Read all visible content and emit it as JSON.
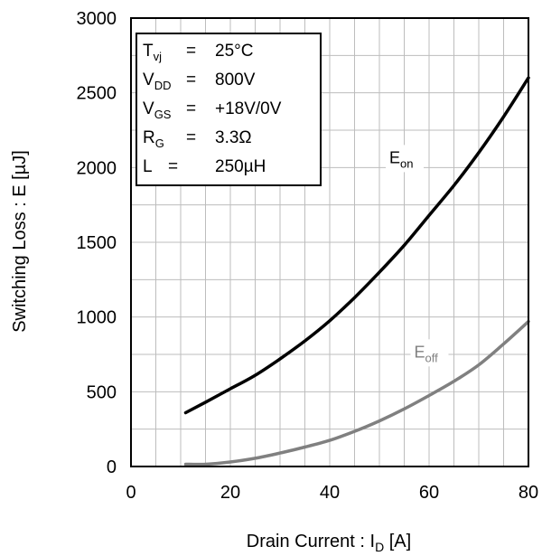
{
  "chart_data": {
    "type": "line",
    "xlabel": {
      "main": "Drain Current : I",
      "sub": "D",
      "unit": " [A]"
    },
    "ylabel": "Switching Loss : E [µJ]",
    "xlim": [
      0,
      80
    ],
    "ylim": [
      0,
      3000
    ],
    "x_ticks": [
      0,
      20,
      40,
      60,
      80
    ],
    "x_tick_labels": [
      "0",
      "20",
      "40",
      "60",
      "80"
    ],
    "y_ticks": [
      0,
      500,
      1000,
      1500,
      2000,
      2500,
      3000
    ],
    "y_tick_labels": [
      "0",
      "500",
      "1000",
      "1500",
      "2000",
      "2500",
      "3000"
    ],
    "grid": true,
    "conditions": [
      {
        "param": "T",
        "sub": "vj",
        "eq": "=",
        "value": "25°C"
      },
      {
        "param": "V",
        "sub": "DD",
        "eq": "=",
        "value": "800V"
      },
      {
        "param": "V",
        "sub": "GS",
        "eq": "=",
        "value": "+18V/0V"
      },
      {
        "param": "R",
        "sub": "G",
        "eq": "=",
        "value": "3.3Ω"
      },
      {
        "param": "L",
        "sub": "",
        "eq": "=",
        "value": "250µH"
      }
    ],
    "series": [
      {
        "name": "E",
        "name_sub": "on",
        "color": "#000000",
        "label_at": [
          52,
          2030
        ],
        "points": [
          [
            11,
            360
          ],
          [
            15,
            430
          ],
          [
            20,
            520
          ],
          [
            25,
            610
          ],
          [
            30,
            720
          ],
          [
            35,
            840
          ],
          [
            40,
            975
          ],
          [
            45,
            1130
          ],
          [
            50,
            1300
          ],
          [
            55,
            1480
          ],
          [
            60,
            1680
          ],
          [
            65,
            1880
          ],
          [
            70,
            2100
          ],
          [
            75,
            2340
          ],
          [
            80,
            2600
          ]
        ]
      },
      {
        "name": "E",
        "name_sub": "off",
        "color": "#808080",
        "label_at": [
          57,
          730
        ],
        "points": [
          [
            11,
            15
          ],
          [
            15,
            15
          ],
          [
            20,
            30
          ],
          [
            25,
            55
          ],
          [
            30,
            90
          ],
          [
            35,
            130
          ],
          [
            40,
            175
          ],
          [
            45,
            235
          ],
          [
            50,
            305
          ],
          [
            55,
            385
          ],
          [
            60,
            475
          ],
          [
            65,
            570
          ],
          [
            70,
            680
          ],
          [
            75,
            820
          ],
          [
            80,
            970
          ]
        ]
      }
    ]
  }
}
